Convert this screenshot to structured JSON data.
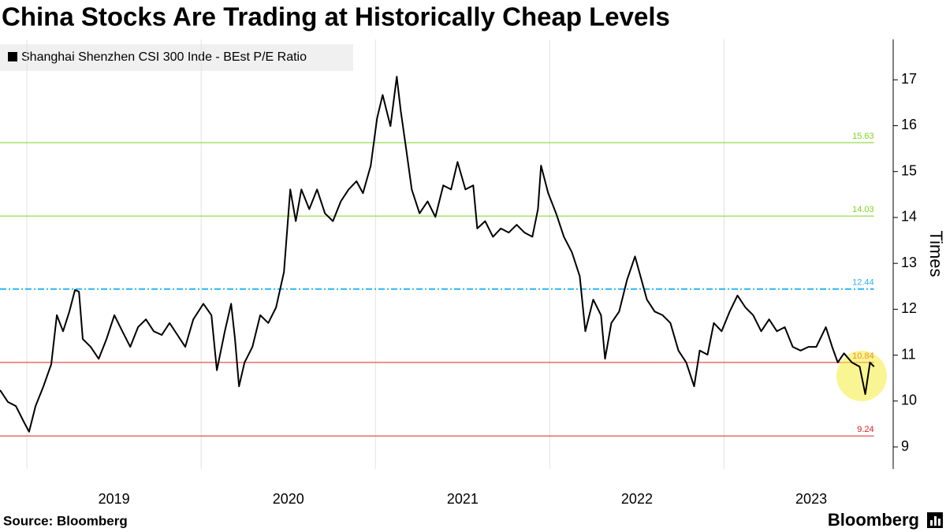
{
  "chart_data": {
    "type": "line",
    "title": "China Stocks Are Trading at Historically Cheap Levels",
    "y_label": "Times",
    "source": "Source: Bloomberg",
    "brand": "Bloomberg",
    "x": [
      2018.846,
      2018.891,
      2018.937,
      2018.982,
      2019.013,
      2019.05,
      2019.095,
      2019.14,
      2019.172,
      2019.208,
      2019.244,
      2019.276,
      2019.299,
      2019.321,
      2019.366,
      2019.412,
      2019.457,
      2019.502,
      2019.548,
      2019.593,
      2019.638,
      2019.683,
      2019.728,
      2019.774,
      2019.819,
      2019.864,
      2019.909,
      2019.955,
      2020.013,
      2020.059,
      2020.09,
      2020.136,
      2020.172,
      2020.194,
      2020.217,
      2020.249,
      2020.294,
      2020.339,
      2020.385,
      2020.43,
      2020.475,
      2020.511,
      2020.543,
      2020.575,
      2020.62,
      2020.665,
      2020.71,
      2020.756,
      2020.801,
      2020.846,
      2020.891,
      2020.928,
      2020.973,
      2021.009,
      2021.041,
      2021.086,
      2021.122,
      2021.145,
      2021.177,
      2021.208,
      2021.253,
      2021.299,
      2021.344,
      2021.389,
      2021.434,
      2021.471,
      2021.516,
      2021.561,
      2021.584,
      2021.629,
      2021.674,
      2021.719,
      2021.765,
      2021.81,
      2021.855,
      2021.9,
      2021.932,
      2021.95,
      2021.991,
      2022.036,
      2022.081,
      2022.127,
      2022.172,
      2022.204,
      2022.249,
      2022.294,
      2022.317,
      2022.353,
      2022.398,
      2022.443,
      2022.489,
      2022.52,
      2022.557,
      2022.602,
      2022.647,
      2022.692,
      2022.738,
      2022.783,
      2022.828,
      2022.86,
      2022.905,
      2022.941,
      2022.986,
      2023.032,
      2023.077,
      2023.122,
      2023.167,
      2023.213,
      2023.258,
      2023.303,
      2023.348,
      2023.394,
      2023.439,
      2023.484,
      2023.529,
      2023.584,
      2023.62,
      2023.652,
      2023.688,
      2023.733,
      2023.778,
      2023.81,
      2023.837,
      2023.86
    ],
    "series": [
      {
        "name": "Shanghai Shenzhen CSI 300 Inde - BEst P/E Ratio",
        "color": "#000000",
        "values": [
          10.24,
          9.98,
          9.89,
          9.55,
          9.33,
          9.89,
          10.32,
          10.8,
          11.87,
          11.52,
          11.95,
          12.42,
          12.38,
          11.35,
          11.18,
          10.92,
          11.35,
          11.87,
          11.52,
          11.18,
          11.61,
          11.78,
          11.52,
          11.44,
          11.7,
          11.44,
          11.18,
          11.78,
          12.12,
          11.87,
          10.67,
          11.52,
          12.12,
          11.35,
          10.32,
          10.84,
          11.18,
          11.87,
          11.7,
          12.04,
          12.81,
          14.61,
          13.92,
          14.61,
          14.18,
          14.61,
          14.09,
          13.92,
          14.35,
          14.61,
          14.79,
          14.53,
          15.13,
          16.16,
          16.67,
          15.99,
          17.07,
          16.33,
          15.47,
          14.61,
          14.09,
          14.35,
          14.01,
          14.7,
          14.61,
          15.21,
          14.61,
          14.7,
          13.76,
          13.92,
          13.58,
          13.76,
          13.67,
          13.84,
          13.67,
          13.58,
          14.18,
          15.13,
          14.53,
          14.09,
          13.58,
          13.24,
          12.72,
          11.52,
          12.21,
          11.87,
          10.92,
          11.7,
          11.95,
          12.64,
          13.15,
          12.72,
          12.21,
          11.95,
          11.87,
          11.7,
          11.1,
          10.84,
          10.32,
          11.1,
          11.01,
          11.7,
          11.52,
          11.95,
          12.3,
          12.04,
          11.87,
          11.52,
          11.78,
          11.52,
          11.61,
          11.18,
          11.1,
          11.18,
          11.18,
          11.61,
          11.18,
          10.84,
          11.04,
          10.84,
          10.75,
          10.15,
          10.84,
          10.75
        ]
      }
    ],
    "reference_lines": [
      {
        "value": 15.63,
        "color": "#7ed321",
        "style": "solid"
      },
      {
        "value": 14.03,
        "color": "#7ed321",
        "style": "solid"
      },
      {
        "value": 12.44,
        "color": "#2bb5f0",
        "style": "dashed"
      },
      {
        "value": 10.84,
        "color": "#e02020",
        "style": "solid"
      },
      {
        "value": 9.24,
        "color": "#e02020",
        "style": "solid"
      }
    ],
    "xlim": [
      2018.846,
      2023.97
    ],
    "xticks": [
      2019,
      2020,
      2021,
      2022,
      2023
    ],
    "ylim": [
      8.52,
      17.88
    ],
    "yticks": [
      9,
      10,
      11,
      12,
      13,
      14,
      15,
      16,
      17
    ]
  }
}
